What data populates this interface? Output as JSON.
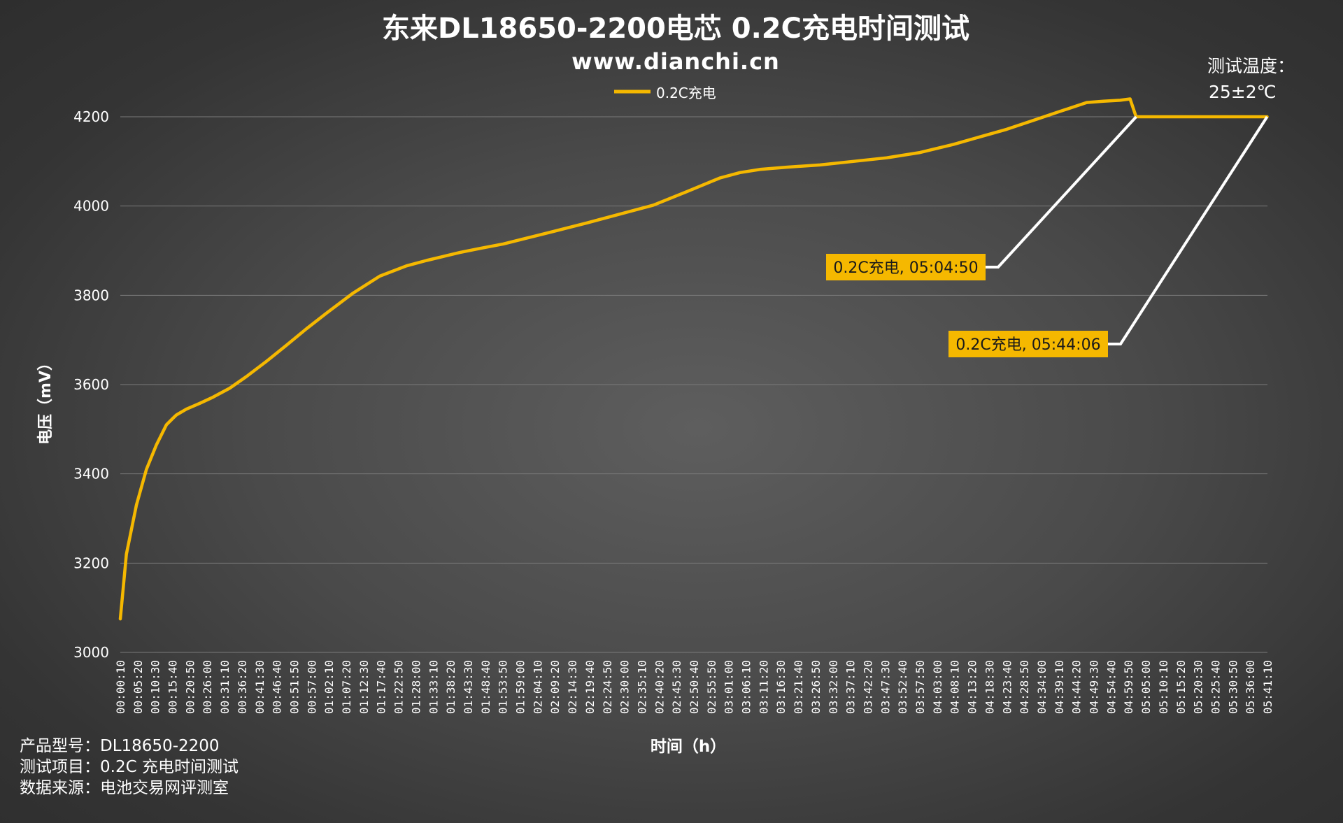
{
  "chart_data": {
    "type": "line",
    "title": "东来DL18650-2200电芯 0.2C充电时间测试",
    "subtitle": "www.dianchi.cn",
    "xlabel": "时间（h）",
    "ylabel": "电压（mV）",
    "ylim": [
      3000,
      4200
    ],
    "yticks": [
      3000,
      3200,
      3400,
      3600,
      3800,
      4000,
      4200
    ],
    "grid": true,
    "legend_position": "top",
    "series_color": "#F5B800",
    "x_ticks": [
      "00:00:10",
      "00:05:20",
      "00:10:30",
      "00:15:40",
      "00:20:50",
      "00:26:00",
      "00:31:10",
      "00:36:20",
      "00:41:30",
      "00:46:40",
      "00:51:50",
      "00:57:00",
      "01:02:10",
      "01:07:20",
      "01:12:30",
      "01:17:40",
      "01:22:50",
      "01:28:00",
      "01:33:10",
      "01:38:20",
      "01:43:30",
      "01:48:40",
      "01:53:50",
      "01:59:00",
      "02:04:10",
      "02:09:20",
      "02:14:30",
      "02:19:40",
      "02:24:50",
      "02:30:00",
      "02:35:10",
      "02:40:20",
      "02:45:30",
      "02:50:40",
      "02:55:50",
      "03:01:00",
      "03:06:10",
      "03:11:20",
      "03:16:30",
      "03:21:40",
      "03:26:50",
      "03:32:00",
      "03:37:10",
      "03:42:20",
      "03:47:30",
      "03:52:40",
      "03:57:50",
      "04:03:00",
      "04:08:10",
      "04:13:20",
      "04:18:30",
      "04:23:40",
      "04:28:50",
      "04:34:00",
      "04:39:10",
      "04:44:20",
      "04:49:30",
      "04:54:40",
      "04:59:50",
      "05:05:00",
      "05:10:10",
      "05:15:20",
      "05:20:30",
      "05:25:40",
      "05:30:50",
      "05:36:00",
      "05:41:10"
    ],
    "series": [
      {
        "name": "0.2C充电",
        "x_minutes": [
          0.17,
          2,
          5,
          8,
          11,
          14,
          16,
          17,
          20,
          24,
          28,
          33,
          38,
          44,
          50,
          56,
          62,
          70,
          78,
          86,
          92,
          97,
          102,
          108,
          115,
          122,
          130,
          140,
          150,
          160,
          170,
          180,
          186,
          192,
          200,
          210,
          220,
          230,
          240,
          250,
          258,
          266,
          274,
          282,
          290,
          295,
          300,
          303,
          304.8,
          305,
          320,
          335,
          344.1
        ],
        "y": [
          3075,
          3220,
          3330,
          3410,
          3465,
          3510,
          3525,
          3532,
          3545,
          3558,
          3572,
          3592,
          3618,
          3652,
          3688,
          3725,
          3760,
          3805,
          3843,
          3866,
          3878,
          3887,
          3896,
          3905,
          3915,
          3928,
          3943,
          3962,
          3982,
          4002,
          4032,
          4063,
          4075,
          4082,
          4087,
          4092,
          4100,
          4108,
          4120,
          4138,
          4155,
          4172,
          4192,
          4212,
          4232,
          4235,
          4237,
          4240,
          4200,
          4200,
          4200,
          4200,
          4200
        ]
      }
    ],
    "annotations": [
      {
        "text": "0.2C充电, 05:04:50",
        "x_minutes": 304.83,
        "y": 4200
      },
      {
        "text": "0.2C充电, 05:44:06",
        "x_minutes": 344.1,
        "y": 4200
      }
    ],
    "temperature_note": [
      "测试温度：",
      "25±2℃"
    ]
  },
  "footer": {
    "model": "产品型号：DL18650-2200",
    "test_item": "测试项目：0.2C 充电时间测试",
    "source": "数据来源：电池交易网评测室"
  }
}
